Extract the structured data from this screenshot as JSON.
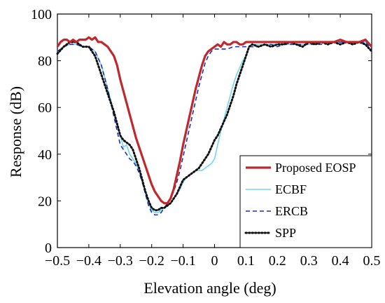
{
  "chart_data": {
    "type": "line",
    "title": "",
    "xlabel": "Elevation angle (deg)",
    "ylabel": "Response (dB)",
    "xlim": [
      -0.5,
      0.5
    ],
    "ylim": [
      0,
      100
    ],
    "xticks": [
      -0.5,
      -0.4,
      -0.3,
      -0.2,
      -0.1,
      0,
      0.1,
      0.2,
      0.3,
      0.4,
      0.5
    ],
    "xtick_labels": [
      "−0.5",
      "−0.4",
      "−0.3",
      "−0.2",
      "−0.1",
      "0",
      "0.1",
      "0.2",
      "0.3",
      "0.4",
      "0.5"
    ],
    "yticks": [
      0,
      20,
      40,
      60,
      80,
      100
    ],
    "ytick_labels": [
      "0",
      "20",
      "40",
      "60",
      "80",
      "100"
    ],
    "grid": false,
    "legend_position": "bottom-right",
    "series": [
      {
        "name": "Proposed EOSP",
        "color": "#c0282c",
        "style": "solid-thick",
        "x": [
          -0.5,
          -0.49,
          -0.48,
          -0.47,
          -0.46,
          -0.45,
          -0.44,
          -0.43,
          -0.42,
          -0.41,
          -0.4,
          -0.39,
          -0.38,
          -0.37,
          -0.36,
          -0.35,
          -0.34,
          -0.33,
          -0.32,
          -0.31,
          -0.3,
          -0.29,
          -0.28,
          -0.27,
          -0.26,
          -0.25,
          -0.24,
          -0.23,
          -0.22,
          -0.21,
          -0.2,
          -0.19,
          -0.18,
          -0.17,
          -0.16,
          -0.15,
          -0.14,
          -0.13,
          -0.12,
          -0.11,
          -0.1,
          -0.09,
          -0.08,
          -0.07,
          -0.06,
          -0.05,
          -0.04,
          -0.03,
          -0.02,
          -0.01,
          0,
          0.01,
          0.02,
          0.03,
          0.04,
          0.05,
          0.06,
          0.07,
          0.08,
          0.09,
          0.1,
          0.12,
          0.14,
          0.16,
          0.18,
          0.2,
          0.22,
          0.24,
          0.26,
          0.28,
          0.3,
          0.32,
          0.34,
          0.36,
          0.38,
          0.4,
          0.42,
          0.44,
          0.46,
          0.48,
          0.5
        ],
        "y": [
          86,
          88,
          89,
          89,
          88,
          89,
          88,
          89,
          89,
          89,
          90,
          89,
          90,
          88,
          88,
          87,
          86,
          84,
          82,
          78,
          72,
          67,
          62,
          57,
          52,
          47,
          43,
          39,
          35,
          31,
          27,
          24,
          22,
          20,
          19,
          19,
          21,
          25,
          31,
          37,
          44,
          50,
          56,
          62,
          68,
          73,
          78,
          82,
          84,
          85,
          86,
          87,
          86,
          88,
          87,
          87,
          88,
          88,
          87,
          87,
          88,
          88,
          88,
          88,
          88,
          88,
          88,
          88,
          88,
          88,
          88,
          88,
          88,
          88,
          88,
          89,
          88,
          88,
          88,
          89,
          86
        ]
      },
      {
        "name": "ECBF",
        "color": "#6fd8ec",
        "style": "solid-thin",
        "x": [
          -0.5,
          -0.48,
          -0.46,
          -0.44,
          -0.42,
          -0.4,
          -0.38,
          -0.36,
          -0.34,
          -0.32,
          -0.3,
          -0.29,
          -0.28,
          -0.27,
          -0.26,
          -0.25,
          -0.24,
          -0.23,
          -0.22,
          -0.21,
          -0.2,
          -0.19,
          -0.18,
          -0.17,
          -0.16,
          -0.15,
          -0.14,
          -0.13,
          -0.12,
          -0.11,
          -0.1,
          -0.09,
          -0.08,
          -0.07,
          -0.06,
          -0.05,
          -0.04,
          -0.03,
          -0.02,
          -0.01,
          0,
          0.01,
          0.02,
          0.03,
          0.04,
          0.05,
          0.06,
          0.07,
          0.08,
          0.09,
          0.1,
          0.11,
          0.12,
          0.14,
          0.16,
          0.18,
          0.2,
          0.22,
          0.24,
          0.26,
          0.28,
          0.3,
          0.32,
          0.34,
          0.36,
          0.38,
          0.4,
          0.42,
          0.44,
          0.46,
          0.48,
          0.5
        ],
        "y": [
          84,
          86,
          87,
          87,
          86,
          86,
          84,
          78,
          68,
          58,
          48,
          43,
          44,
          40,
          38,
          36,
          33,
          29,
          24,
          19,
          16,
          15,
          15,
          16,
          17,
          18,
          19,
          21,
          23,
          25,
          28,
          30,
          31,
          32,
          33,
          33,
          33,
          34,
          35,
          36,
          38,
          44,
          50,
          55,
          60,
          65,
          70,
          74,
          77,
          80,
          82,
          86,
          87,
          87,
          87,
          87,
          87,
          87,
          87,
          87,
          87,
          87,
          87,
          88,
          88,
          88,
          88,
          88,
          88,
          88,
          88,
          86
        ]
      },
      {
        "name": "ERCB",
        "color": "#1f2fb5",
        "style": "dashed",
        "x": [
          -0.5,
          -0.48,
          -0.46,
          -0.44,
          -0.42,
          -0.4,
          -0.38,
          -0.36,
          -0.34,
          -0.32,
          -0.3,
          -0.29,
          -0.28,
          -0.27,
          -0.26,
          -0.25,
          -0.24,
          -0.23,
          -0.22,
          -0.21,
          -0.2,
          -0.19,
          -0.18,
          -0.17,
          -0.16,
          -0.15,
          -0.14,
          -0.13,
          -0.12,
          -0.11,
          -0.1,
          -0.09,
          -0.08,
          -0.07,
          -0.06,
          -0.05,
          -0.04,
          -0.03,
          -0.02,
          -0.01,
          0,
          0.02,
          0.04,
          0.06,
          0.08,
          0.1,
          0.12,
          0.14,
          0.16,
          0.18,
          0.2,
          0.22,
          0.24,
          0.26,
          0.28,
          0.3,
          0.32,
          0.34,
          0.36,
          0.38,
          0.4,
          0.42,
          0.44,
          0.46,
          0.48,
          0.5
        ],
        "y": [
          84,
          86,
          87,
          87,
          86,
          86,
          84,
          78,
          68,
          56,
          44,
          42,
          40,
          38,
          37,
          35,
          32,
          28,
          23,
          18,
          15,
          14,
          14,
          15,
          17,
          19,
          21,
          24,
          28,
          33,
          39,
          45,
          51,
          57,
          63,
          69,
          74,
          79,
          82,
          84,
          85,
          85,
          85,
          86,
          86,
          86,
          86,
          86,
          87,
          87,
          86,
          87,
          87,
          87,
          87,
          87,
          87,
          87,
          88,
          88,
          88,
          88,
          88,
          88,
          88,
          85
        ]
      },
      {
        "name": "SPP",
        "color": "#111111",
        "style": "dotted",
        "x": [
          -0.5,
          -0.48,
          -0.46,
          -0.44,
          -0.42,
          -0.4,
          -0.38,
          -0.36,
          -0.34,
          -0.32,
          -0.3,
          -0.29,
          -0.28,
          -0.27,
          -0.26,
          -0.25,
          -0.24,
          -0.23,
          -0.22,
          -0.21,
          -0.2,
          -0.19,
          -0.18,
          -0.17,
          -0.16,
          -0.15,
          -0.14,
          -0.13,
          -0.12,
          -0.11,
          -0.1,
          -0.09,
          -0.08,
          -0.07,
          -0.06,
          -0.05,
          -0.04,
          -0.03,
          -0.02,
          -0.01,
          0,
          0.01,
          0.02,
          0.03,
          0.04,
          0.05,
          0.06,
          0.07,
          0.08,
          0.09,
          0.1,
          0.11,
          0.12,
          0.14,
          0.16,
          0.18,
          0.2,
          0.22,
          0.24,
          0.26,
          0.28,
          0.3,
          0.32,
          0.34,
          0.36,
          0.38,
          0.4,
          0.42,
          0.44,
          0.46,
          0.48,
          0.5
        ],
        "y": [
          83,
          86,
          88,
          88,
          86,
          86,
          82,
          74,
          66,
          58,
          48,
          46,
          45,
          44,
          42,
          38,
          34,
          29,
          24,
          20,
          17,
          16,
          16,
          17,
          17,
          18,
          19,
          21,
          23,
          26,
          29,
          30,
          31,
          32,
          33,
          34,
          36,
          38,
          40,
          43,
          46,
          48,
          51,
          54,
          57,
          61,
          65,
          70,
          74,
          78,
          82,
          86,
          87,
          86,
          87,
          86,
          87,
          87,
          88,
          87,
          86,
          88,
          87,
          88,
          87,
          88,
          87,
          88,
          87,
          88,
          87,
          84
        ]
      }
    ]
  }
}
